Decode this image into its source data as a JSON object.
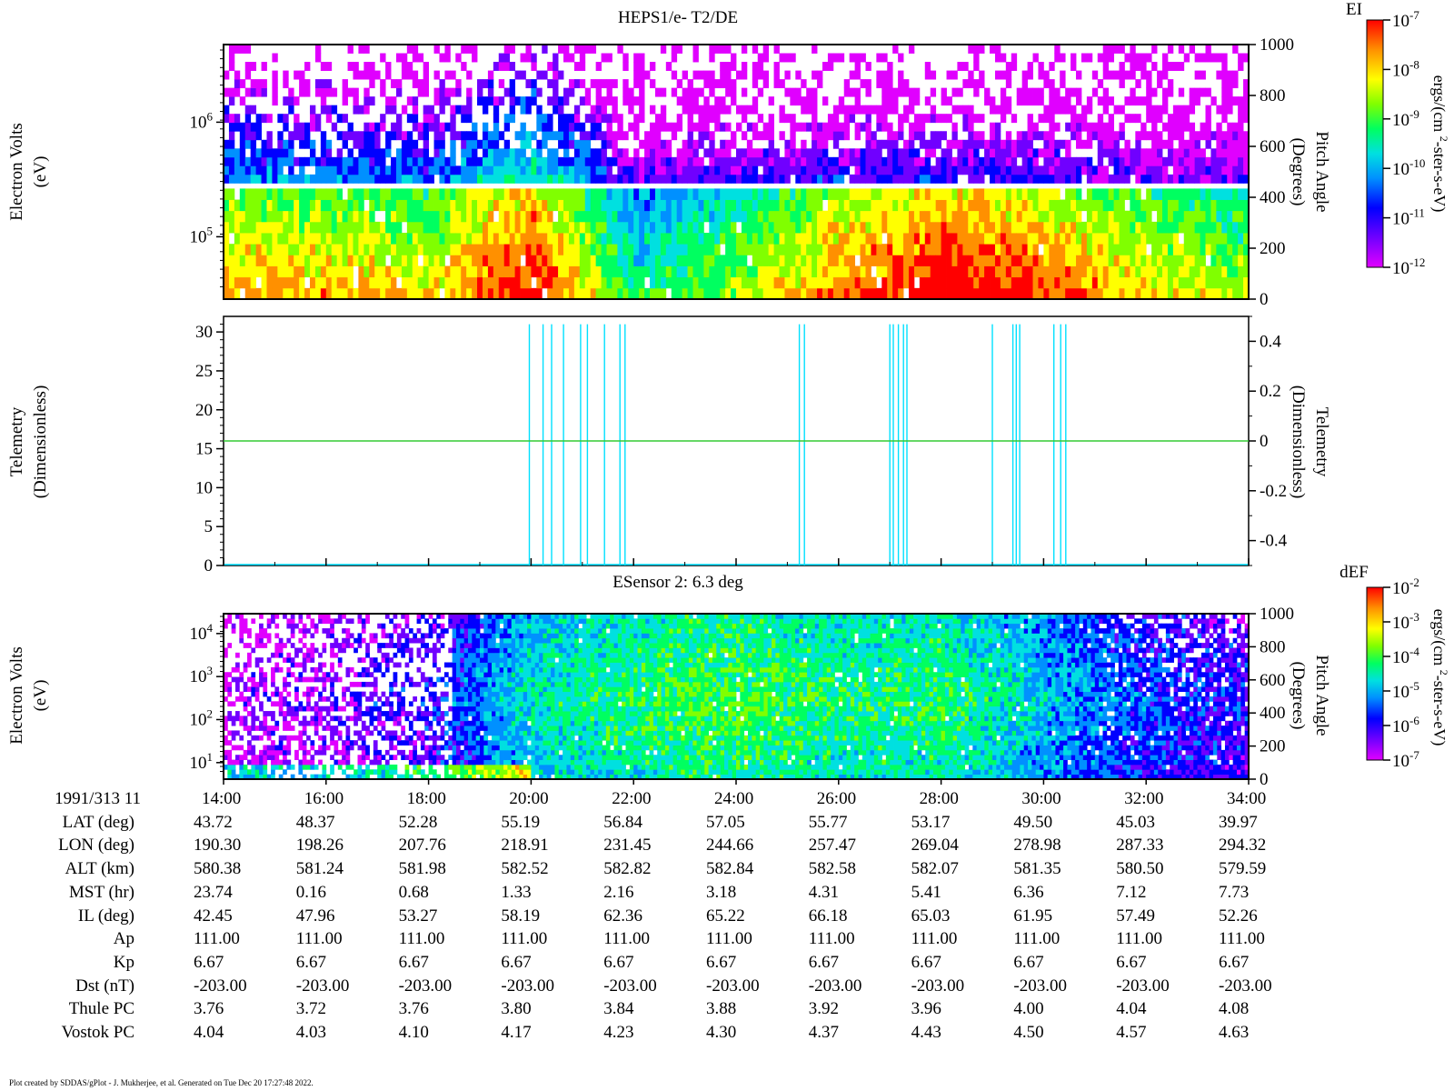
{
  "panels": {
    "top": {
      "title": "HEPS1/e- T2/DE",
      "ylabel_left": [
        "Electron Volts",
        "(eV)"
      ],
      "ylabel_right": [
        "Pitch Angle",
        "(Degrees)"
      ],
      "left_ticks": [
        "10^6",
        "10^5"
      ],
      "right_ticks": [
        "1000",
        "800",
        "600",
        "400",
        "200",
        "0"
      ],
      "colorbar": {
        "title": "EI",
        "unit": "ergs/(cm^2-ster-s-eV)",
        "tick_exponents": [
          "-7",
          "-8",
          "-9",
          "-10",
          "-11",
          "-12"
        ]
      }
    },
    "middle": {
      "ylabel_left": [
        "Telemetry",
        "(Dimensionless)"
      ],
      "ylabel_right": [
        "Telemetry",
        "(Dimensionless)"
      ],
      "left_ticks": [
        "30",
        "25",
        "20",
        "15",
        "10",
        "5",
        "0"
      ],
      "right_ticks": [
        "0.4",
        "0.2",
        "0",
        "-0.2",
        "-0.4"
      ]
    },
    "bottom": {
      "title": "ESensor 2: 6.3 deg",
      "ylabel_left": [
        "Electron Volts",
        "(eV)"
      ],
      "ylabel_right": [
        "Pitch Angle",
        "(Degrees)"
      ],
      "left_ticks": [
        "10^4",
        "10^3",
        "10^2",
        "10^1"
      ],
      "right_ticks": [
        "1000",
        "800",
        "600",
        "400",
        "200",
        "0"
      ],
      "colorbar": {
        "title": "dEF",
        "unit": "ergs/(cm^2-ster-s-eV)",
        "tick_exponents": [
          "-2",
          "-3",
          "-4",
          "-5",
          "-6",
          "-7"
        ]
      }
    }
  },
  "ephemeris": {
    "header": "1991/313 11",
    "times": [
      "14:00",
      "16:00",
      "18:00",
      "20:00",
      "22:00",
      "24:00",
      "26:00",
      "28:00",
      "30:00",
      "32:00",
      "34:00"
    ],
    "rows": [
      {
        "label": "LAT (deg)",
        "values": [
          "43.72",
          "48.37",
          "52.28",
          "55.19",
          "56.84",
          "57.05",
          "55.77",
          "53.17",
          "49.50",
          "45.03",
          "39.97"
        ]
      },
      {
        "label": "LON (deg)",
        "values": [
          "190.30",
          "198.26",
          "207.76",
          "218.91",
          "231.45",
          "244.66",
          "257.47",
          "269.04",
          "278.98",
          "287.33",
          "294.32"
        ]
      },
      {
        "label": "ALT (km)",
        "values": [
          "580.38",
          "581.24",
          "581.98",
          "582.52",
          "582.82",
          "582.84",
          "582.58",
          "582.07",
          "581.35",
          "580.50",
          "579.59"
        ]
      },
      {
        "label": "MST (hr)",
        "values": [
          "23.74",
          "0.16",
          "0.68",
          "1.33",
          "2.16",
          "3.18",
          "4.31",
          "5.41",
          "6.36",
          "7.12",
          "7.73"
        ]
      },
      {
        "label": "IL (deg)",
        "values": [
          "42.45",
          "47.96",
          "53.27",
          "58.19",
          "62.36",
          "65.22",
          "66.18",
          "65.03",
          "61.95",
          "57.49",
          "52.26"
        ]
      },
      {
        "label": "Ap",
        "values": [
          "111.00",
          "111.00",
          "111.00",
          "111.00",
          "111.00",
          "111.00",
          "111.00",
          "111.00",
          "111.00",
          "111.00",
          "111.00"
        ]
      },
      {
        "label": "Kp",
        "values": [
          "6.67",
          "6.67",
          "6.67",
          "6.67",
          "6.67",
          "6.67",
          "6.67",
          "6.67",
          "6.67",
          "6.67",
          "6.67"
        ]
      },
      {
        "label": "Dst (nT)",
        "values": [
          "-203.00",
          "-203.00",
          "-203.00",
          "-203.00",
          "-203.00",
          "-203.00",
          "-203.00",
          "-203.00",
          "-203.00",
          "-203.00",
          "-203.00"
        ]
      },
      {
        "label": "Thule PC",
        "values": [
          "3.76",
          "3.72",
          "3.76",
          "3.80",
          "3.84",
          "3.88",
          "3.92",
          "3.96",
          "4.00",
          "4.04",
          "4.08"
        ]
      },
      {
        "label": "Vostok PC",
        "values": [
          "4.04",
          "4.03",
          "4.10",
          "4.17",
          "4.23",
          "4.30",
          "4.37",
          "4.43",
          "4.50",
          "4.57",
          "4.63"
        ]
      }
    ]
  },
  "footer": "Plot created by SDDAS/gPlot - J. Mukherjee, et al.  Generated on Tue Dec 20 17:27:48 2022.",
  "colors": {
    "spectrogram_scale": [
      "#e000ff",
      "#7000ff",
      "#0000ff",
      "#0090ff",
      "#00e0e0",
      "#00ff60",
      "#80ff00",
      "#ffff00",
      "#ff9000",
      "#ff0000"
    ],
    "telemetry_line": "#33cc33",
    "telemetry_spikes": "#00e0ff"
  },
  "chart_data": [
    {
      "type": "heatmap",
      "title": "HEPS1/e- T2/DE",
      "ylabel": "Electron Volts (eV)",
      "y2label": "Pitch Angle (Degrees)",
      "colorbar_label": "EI ergs/(cm^2-ster-s-eV)",
      "colorbar_range": [
        1e-12,
        1e-07
      ],
      "xlim": [
        "14:00",
        "34:00"
      ],
      "y2lim": [
        0,
        1000
      ],
      "x_columns": [
        "14:00",
        "16:00",
        "18:00",
        "20:00",
        "22:00",
        "24:00",
        "26:00",
        "28:00",
        "30:00",
        "32:00",
        "34:00"
      ],
      "low_energy_log10_intensity": [
        -7.8,
        -7.9,
        -8.1,
        -7.0,
        -9.3,
        -8.6,
        -7.6,
        -7.0,
        -7.4,
        -8.1,
        -8.5
      ],
      "high_energy_log10_intensity": [
        -10.2,
        -10.3,
        -10.4,
        -9.4,
        -11.2,
        -11.0,
        -10.9,
        -10.9,
        -11.0,
        -11.2,
        -11.2
      ]
    },
    {
      "type": "line",
      "ylabel": "Telemetry (Dimensionless)",
      "y2label": "Telemetry (Dimensionless)",
      "ylim": [
        0,
        32
      ],
      "y2lim": [
        -0.5,
        0.5
      ],
      "series": [
        {
          "values": [
            0,
            0
          ]
        }
      ],
      "x": [
        "14:00",
        "34:00"
      ],
      "spike_times": [
        "19:58",
        "20:14",
        "20:24",
        "20:38",
        "20:58",
        "21:06",
        "21:26",
        "21:44",
        "21:50",
        "25:14",
        "25:20",
        "27:00",
        "27:04",
        "27:10",
        "27:16",
        "27:20",
        "29:00",
        "29:24",
        "29:28",
        "29:32",
        "30:12",
        "30:20",
        "30:26"
      ],
      "spike_level": 31
    },
    {
      "type": "heatmap",
      "title": "ESensor 2: 6.3 deg",
      "ylabel": "Electron Volts (eV)",
      "y2label": "Pitch Angle (Degrees)",
      "colorbar_label": "dEF ergs/(cm^2-ster-s-eV)",
      "colorbar_range": [
        1e-07,
        0.01
      ],
      "xlim": [
        "14:00",
        "34:00"
      ],
      "ylim": [
        5,
        30000
      ],
      "y2lim": [
        0,
        1000
      ],
      "x_columns": [
        "14:00",
        "16:00",
        "18:00",
        "20:00",
        "22:00",
        "24:00",
        "26:00",
        "28:00",
        "30:00",
        "32:00",
        "34:00"
      ],
      "column_log10_flux": [
        -6.4,
        -6.2,
        -5.8,
        -4.6,
        -4.2,
        -4.0,
        -4.3,
        -4.2,
        -4.9,
        -5.5,
        -5.8
      ]
    }
  ]
}
